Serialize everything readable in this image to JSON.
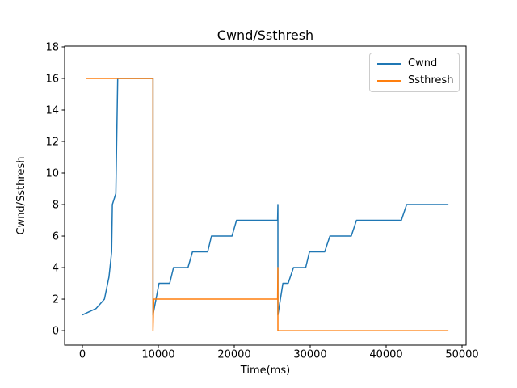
{
  "figure": {
    "title": "Cwnd/Ssthresh",
    "xlabel": "Time(ms)",
    "ylabel": "Cwnd/Ssthresh"
  },
  "chart_data": {
    "type": "line",
    "title": "Cwnd/Ssthresh",
    "xlabel": "Time(ms)",
    "ylabel": "Cwnd/Ssthresh",
    "xlim": [
      -2340,
      50532
    ],
    "ylim": [
      -0.92,
      18.05
    ],
    "x_ticks": [
      0,
      10000,
      20000,
      30000,
      40000,
      50000
    ],
    "y_ticks": [
      0,
      2,
      4,
      6,
      8,
      10,
      12,
      14,
      16,
      18
    ],
    "grid": false,
    "legend_position": "upper right",
    "background": "#ffffff",
    "spine_color": "#000000",
    "series": [
      {
        "name": "Cwnd",
        "color": "#1f77b4",
        "points": [
          [
            0,
            1
          ],
          [
            1800,
            1.4
          ],
          [
            2900,
            2
          ],
          [
            3500,
            3.4
          ],
          [
            3700,
            4.3
          ],
          [
            3850,
            5
          ],
          [
            3950,
            8
          ],
          [
            4400,
            8.7
          ],
          [
            4650,
            16
          ],
          [
            9300,
            16
          ],
          [
            9300,
            1
          ],
          [
            10100,
            3
          ],
          [
            11500,
            3
          ],
          [
            12000,
            4
          ],
          [
            13900,
            4
          ],
          [
            14500,
            5
          ],
          [
            16500,
            5
          ],
          [
            17000,
            6
          ],
          [
            19700,
            6
          ],
          [
            20300,
            7
          ],
          [
            25700,
            7
          ],
          [
            25750,
            8
          ],
          [
            25750,
            1
          ],
          [
            26400,
            3
          ],
          [
            27100,
            3
          ],
          [
            27800,
            4
          ],
          [
            29400,
            4
          ],
          [
            29900,
            5
          ],
          [
            31900,
            5
          ],
          [
            32600,
            6
          ],
          [
            35400,
            6
          ],
          [
            36100,
            7
          ],
          [
            42000,
            7
          ],
          [
            42700,
            8
          ],
          [
            48200,
            8
          ]
        ]
      },
      {
        "name": "Ssthresh",
        "color": "#ff7f0e",
        "points": [
          [
            500,
            16
          ],
          [
            9300,
            16
          ],
          [
            9300,
            0
          ],
          [
            9400,
            2
          ],
          [
            25700,
            2
          ],
          [
            25750,
            4
          ],
          [
            25750,
            0
          ],
          [
            48200,
            0
          ]
        ]
      }
    ]
  }
}
